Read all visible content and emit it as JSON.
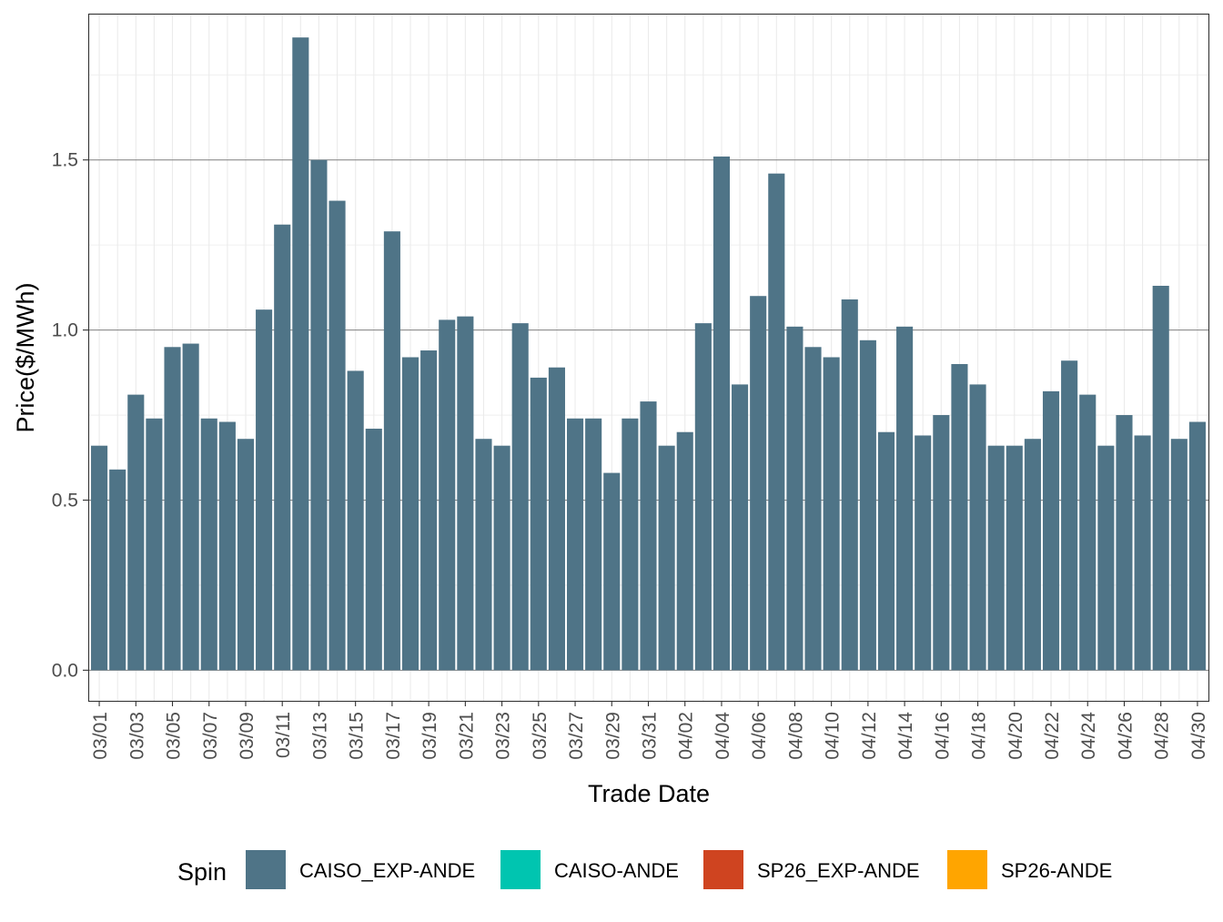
{
  "chart_data": {
    "type": "bar",
    "title": "",
    "xlabel": "Trade Date",
    "ylabel": "Price($/MWh)",
    "ylim": [
      -0.09,
      1.93
    ],
    "yticks": [
      "0.0",
      "0.5",
      "1.0",
      "1.5"
    ],
    "grid": true,
    "categories": [
      "03/01",
      "03/02",
      "03/03",
      "03/04",
      "03/05",
      "03/06",
      "03/07",
      "03/08",
      "03/09",
      "03/10",
      "03/11",
      "03/12",
      "03/13",
      "03/14",
      "03/15",
      "03/16",
      "03/17",
      "03/18",
      "03/19",
      "03/20",
      "03/21",
      "03/22",
      "03/23",
      "03/24",
      "03/25",
      "03/26",
      "03/27",
      "03/28",
      "03/29",
      "03/30",
      "03/31",
      "04/01",
      "04/02",
      "04/03",
      "04/04",
      "04/05",
      "04/06",
      "04/07",
      "04/08",
      "04/09",
      "04/10",
      "04/11",
      "04/12",
      "04/13",
      "04/14",
      "04/15",
      "04/16",
      "04/17",
      "04/18",
      "04/19",
      "04/20",
      "04/21",
      "04/22",
      "04/23",
      "04/24",
      "04/25",
      "04/26",
      "04/27",
      "04/28",
      "04/29",
      "04/30"
    ],
    "tick_labels": [
      "03/01",
      "03/03",
      "03/05",
      "03/07",
      "03/09",
      "03/11",
      "03/13",
      "03/15",
      "03/17",
      "03/19",
      "03/21",
      "03/23",
      "03/25",
      "03/27",
      "03/29",
      "03/31",
      "04/02",
      "04/04",
      "04/06",
      "04/08",
      "04/10",
      "04/12",
      "04/14",
      "04/16",
      "04/18",
      "04/20",
      "04/22",
      "04/24",
      "04/26",
      "04/28",
      "04/30"
    ],
    "series": [
      {
        "name": "CAISO_EXP-ANDE",
        "color": "#4f7487",
        "values": [
          0.66,
          0.59,
          0.81,
          0.74,
          0.95,
          0.96,
          0.74,
          0.73,
          0.68,
          1.06,
          1.31,
          1.86,
          1.5,
          1.38,
          0.88,
          0.71,
          1.29,
          0.92,
          0.94,
          1.03,
          1.04,
          0.68,
          0.66,
          1.02,
          0.86,
          0.89,
          0.74,
          0.74,
          0.58,
          0.74,
          0.79,
          0.66,
          0.7,
          1.02,
          1.51,
          0.84,
          1.1,
          1.46,
          1.01,
          0.95,
          0.92,
          1.09,
          0.97,
          0.7,
          1.01,
          0.69,
          0.75,
          0.9,
          0.84,
          0.66,
          0.66,
          0.68,
          0.82,
          0.91,
          0.81,
          0.66,
          0.75,
          0.69,
          1.13,
          0.68,
          0.73
        ]
      }
    ],
    "legend": {
      "title": "Spin",
      "position": "bottom",
      "entries": [
        {
          "label": "CAISO_EXP-ANDE",
          "color": "#4f7487"
        },
        {
          "label": "CAISO-ANDE",
          "color": "#00c5b0"
        },
        {
          "label": "SP26_EXP-ANDE",
          "color": "#cf4420"
        },
        {
          "label": "SP26-ANDE",
          "color": "#ffa500"
        }
      ]
    }
  }
}
